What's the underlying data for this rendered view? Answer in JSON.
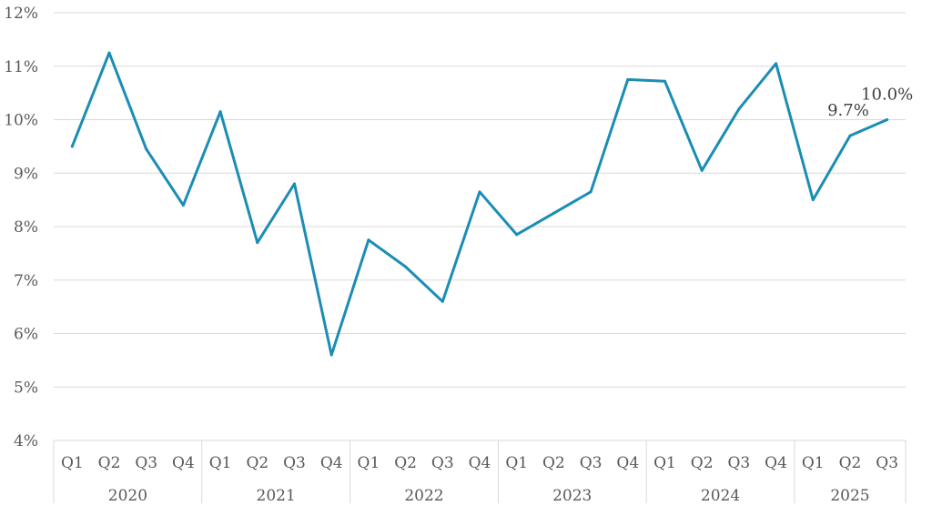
{
  "chart_data": {
    "type": "line",
    "title": "",
    "xlabel": "",
    "ylabel": "",
    "ylim": [
      4,
      12
    ],
    "yticks": [
      "4%",
      "5%",
      "6%",
      "7%",
      "8%",
      "9%",
      "10%",
      "11%",
      "12%"
    ],
    "grid": true,
    "legend": "none",
    "line_color": "#1b8db5",
    "grid_color": "#d9d9d9",
    "years": [
      "2020",
      "2021",
      "2022",
      "2023",
      "2024",
      "2025"
    ],
    "categories": [
      {
        "year": "2020",
        "quarter": "Q1"
      },
      {
        "year": "2020",
        "quarter": "Q2"
      },
      {
        "year": "2020",
        "quarter": "Q3"
      },
      {
        "year": "2020",
        "quarter": "Q4"
      },
      {
        "year": "2021",
        "quarter": "Q1"
      },
      {
        "year": "2021",
        "quarter": "Q2"
      },
      {
        "year": "2021",
        "quarter": "Q3"
      },
      {
        "year": "2021",
        "quarter": "Q4"
      },
      {
        "year": "2022",
        "quarter": "Q1"
      },
      {
        "year": "2022",
        "quarter": "Q2"
      },
      {
        "year": "2022",
        "quarter": "Q3"
      },
      {
        "year": "2022",
        "quarter": "Q4"
      },
      {
        "year": "2023",
        "quarter": "Q1"
      },
      {
        "year": "2023",
        "quarter": "Q2"
      },
      {
        "year": "2023",
        "quarter": "Q3"
      },
      {
        "year": "2023",
        "quarter": "Q4"
      },
      {
        "year": "2024",
        "quarter": "Q1"
      },
      {
        "year": "2024",
        "quarter": "Q2"
      },
      {
        "year": "2024",
        "quarter": "Q3"
      },
      {
        "year": "2024",
        "quarter": "Q4"
      },
      {
        "year": "2025",
        "quarter": "Q1"
      },
      {
        "year": "2025",
        "quarter": "Q2"
      },
      {
        "year": "2025",
        "quarter": "Q3"
      }
    ],
    "series": [
      {
        "values": [
          9.5,
          11.25,
          9.45,
          8.4,
          10.15,
          7.7,
          8.8,
          5.6,
          7.75,
          7.25,
          6.6,
          8.65,
          7.85,
          8.25,
          8.65,
          10.75,
          10.72,
          9.05,
          10.2,
          11.05,
          8.5,
          9.7,
          10.0
        ]
      }
    ],
    "data_labels": [
      {
        "index": 21,
        "text": "9.7%"
      },
      {
        "index": 22,
        "text": "10.0%"
      }
    ]
  }
}
